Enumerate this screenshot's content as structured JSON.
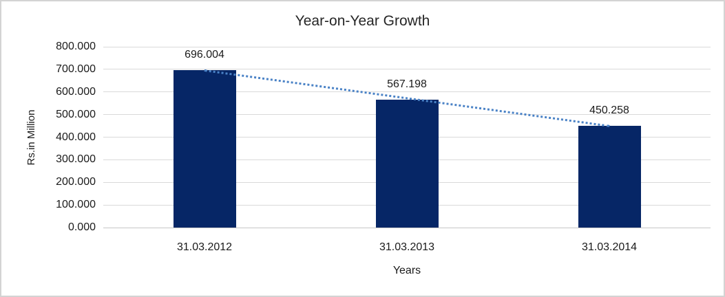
{
  "chart_data": {
    "type": "bar",
    "title": "Year-on-Year Growth",
    "xlabel": "Years",
    "ylabel": "Rs.in Million",
    "categories": [
      "31.03.2012",
      "31.03.2013",
      "31.03.2014"
    ],
    "values": [
      696.004,
      567.198,
      450.258
    ],
    "value_labels": [
      "696.004",
      "567.198",
      "450.258"
    ],
    "ylim": [
      0,
      800
    ],
    "y_tick_step": 100,
    "y_tick_labels": [
      "0.000",
      "100.000",
      "200.000",
      "300.000",
      "400.000",
      "500.000",
      "600.000",
      "700.000",
      "800.000"
    ],
    "grid": true,
    "legend": false,
    "trendline": {
      "type": "linear",
      "style": "dotted"
    }
  },
  "colors": {
    "bar": "#062666",
    "trendline": "#4a82c6",
    "gridline": "#d9d9d9",
    "zero_axis_line": "#c6c6c6",
    "text": "#1a1a1a",
    "title_text": "#262626",
    "frame_border": "#d3d3d3",
    "background": "#ffffff"
  }
}
